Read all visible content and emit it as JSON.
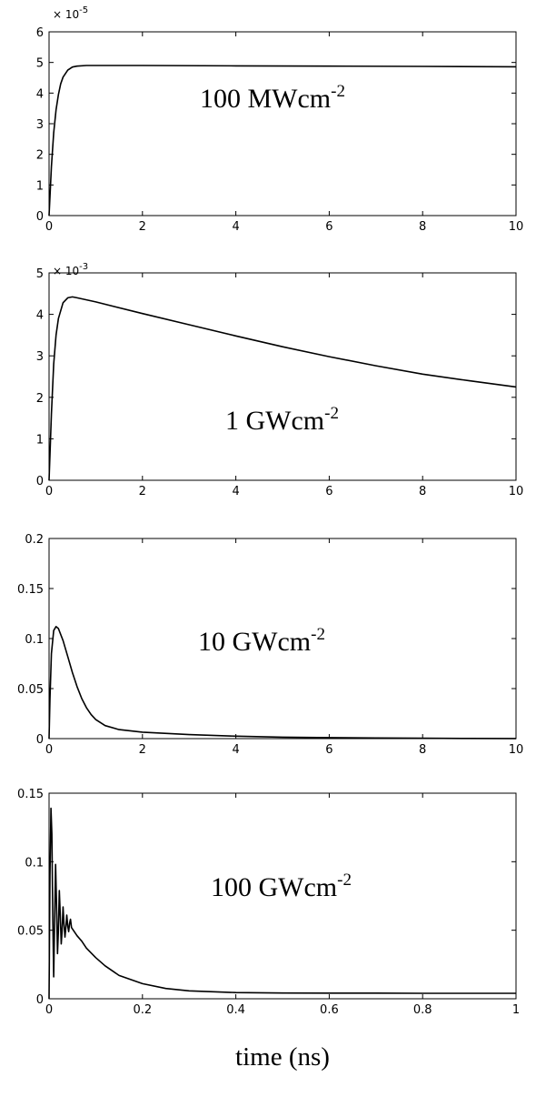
{
  "chart_data": [
    {
      "type": "line",
      "xlim": [
        0,
        10
      ],
      "ylim": [
        0,
        6
      ],
      "xticks": [
        "0",
        "2",
        "4",
        "6",
        "8",
        "10"
      ],
      "yticks": [
        "0",
        "1",
        "2",
        "3",
        "4",
        "5",
        "6"
      ],
      "y_exponent_base": "× 10",
      "y_exponent": "-5",
      "annotation": {
        "text": "100 MWcm",
        "sup": "-2"
      },
      "series": [
        {
          "x": [
            0,
            0.05,
            0.1,
            0.15,
            0.2,
            0.25,
            0.3,
            0.4,
            0.5,
            0.6,
            0.8,
            1,
            2,
            4,
            6,
            8,
            10
          ],
          "y": [
            0,
            1.6,
            2.7,
            3.45,
            3.95,
            4.3,
            4.52,
            4.75,
            4.85,
            4.88,
            4.9,
            4.9,
            4.9,
            4.89,
            4.88,
            4.87,
            4.86
          ]
        }
      ]
    },
    {
      "type": "line",
      "xlim": [
        0,
        10
      ],
      "ylim": [
        0,
        5
      ],
      "xticks": [
        "0",
        "2",
        "4",
        "6",
        "8",
        "10"
      ],
      "yticks": [
        "0",
        "1",
        "2",
        "3",
        "4",
        "5"
      ],
      "y_exponent_base": "× 10",
      "y_exponent": "-3",
      "annotation": {
        "text": "1 GWcm",
        "sup": "-2"
      },
      "series": [
        {
          "x": [
            0,
            0.05,
            0.1,
            0.15,
            0.2,
            0.3,
            0.4,
            0.5,
            0.6,
            0.8,
            1,
            2,
            3,
            4,
            5,
            6,
            7,
            8,
            9,
            10
          ],
          "y": [
            0,
            1.6,
            2.8,
            3.5,
            3.9,
            4.28,
            4.4,
            4.42,
            4.4,
            4.35,
            4.3,
            4.02,
            3.75,
            3.48,
            3.22,
            2.98,
            2.76,
            2.56,
            2.4,
            2.25
          ]
        }
      ]
    },
    {
      "type": "line",
      "xlim": [
        0,
        10
      ],
      "ylim": [
        0,
        0.2
      ],
      "xticks": [
        "0",
        "2",
        "4",
        "6",
        "8",
        "10"
      ],
      "yticks": [
        "0",
        "0.05",
        "0.1",
        "0.15",
        "0.2"
      ],
      "annotation": {
        "text": "10 GWcm",
        "sup": "-2"
      },
      "series": [
        {
          "x": [
            0,
            0.02,
            0.05,
            0.1,
            0.15,
            0.2,
            0.3,
            0.4,
            0.5,
            0.6,
            0.7,
            0.8,
            0.9,
            1,
            1.2,
            1.5,
            2,
            3,
            4,
            5,
            6,
            7,
            8,
            9,
            10
          ],
          "y": [
            0,
            0.04,
            0.085,
            0.108,
            0.112,
            0.11,
            0.098,
            0.082,
            0.066,
            0.052,
            0.04,
            0.031,
            0.024,
            0.019,
            0.013,
            0.009,
            0.0065,
            0.004,
            0.0025,
            0.0015,
            0.001,
            0.0006,
            0.0004,
            0.0002,
            0.0001
          ]
        }
      ]
    },
    {
      "type": "line",
      "xlim": [
        0,
        1
      ],
      "ylim": [
        0,
        0.15
      ],
      "xticks": [
        "0",
        "0.2",
        "0.4",
        "0.6",
        "0.8",
        "1"
      ],
      "yticks": [
        "0",
        "0.05",
        "0.1",
        "0.15"
      ],
      "xlabel": "time (ns)",
      "annotation": {
        "text": "100 GWcm",
        "sup": "-2"
      },
      "series": [
        {
          "x": [
            0,
            0.002,
            0.004,
            0.006,
            0.008,
            0.01,
            0.012,
            0.014,
            0.016,
            0.018,
            0.02,
            0.022,
            0.024,
            0.026,
            0.028,
            0.03,
            0.032,
            0.034,
            0.036,
            0.038,
            0.04,
            0.042,
            0.044,
            0.046,
            0.048,
            0.05,
            0.06,
            0.07,
            0.08,
            0.1,
            0.12,
            0.15,
            0.2,
            0.25,
            0.3,
            0.4,
            0.5,
            0.6,
            0.7,
            0.8,
            0.9,
            1
          ],
          "y": [
            0,
            0.09,
            0.139,
            0.12,
            0.06,
            0.016,
            0.06,
            0.098,
            0.07,
            0.033,
            0.05,
            0.079,
            0.062,
            0.04,
            0.05,
            0.067,
            0.055,
            0.045,
            0.052,
            0.061,
            0.053,
            0.049,
            0.055,
            0.058,
            0.052,
            0.051,
            0.046,
            0.042,
            0.037,
            0.03,
            0.024,
            0.017,
            0.011,
            0.0075,
            0.0058,
            0.0045,
            0.0042,
            0.0041,
            0.0041,
            0.004,
            0.004,
            0.004
          ]
        }
      ]
    }
  ]
}
